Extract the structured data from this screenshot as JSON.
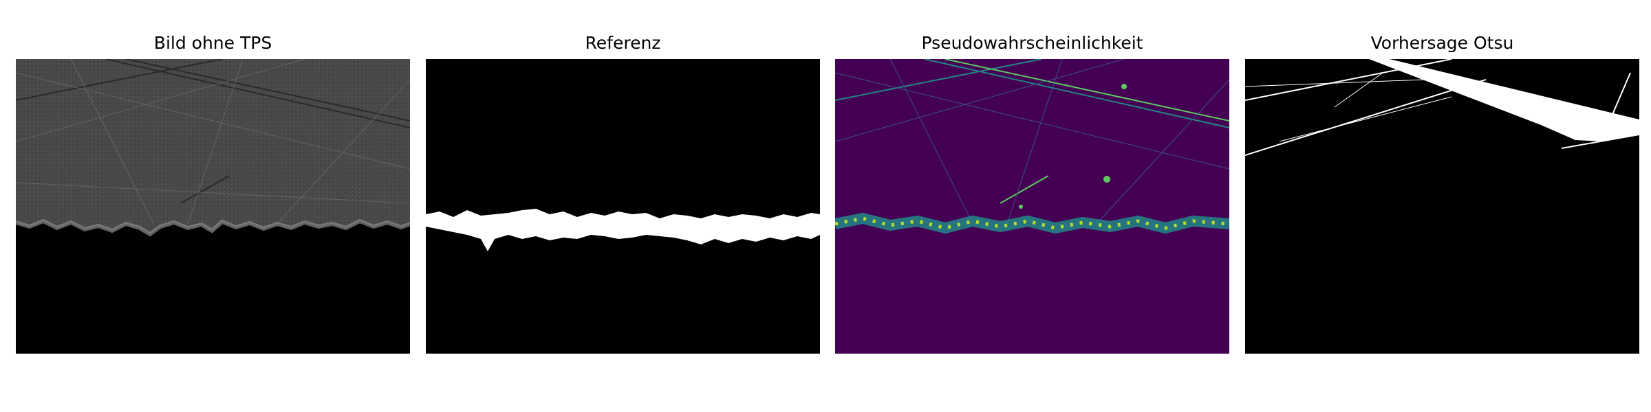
{
  "figure": {
    "panels": [
      {
        "title": "Bild ohne TPS",
        "type": "grayscale-micrograph",
        "colors": {
          "surface": "#4a4a4a",
          "background": "#000000"
        }
      },
      {
        "title": "Referenz",
        "type": "binary-mask",
        "colors": {
          "foreground": "#ffffff",
          "background": "#000000"
        }
      },
      {
        "title": "Pseudowahrscheinlichkeit",
        "type": "probability-map",
        "colors": {
          "low": "#440154",
          "mid": "#21918c",
          "high": "#fde725"
        }
      },
      {
        "title": "Vorhersage Otsu",
        "type": "binary-mask",
        "colors": {
          "foreground": "#ffffff",
          "background": "#000000"
        }
      }
    ]
  }
}
